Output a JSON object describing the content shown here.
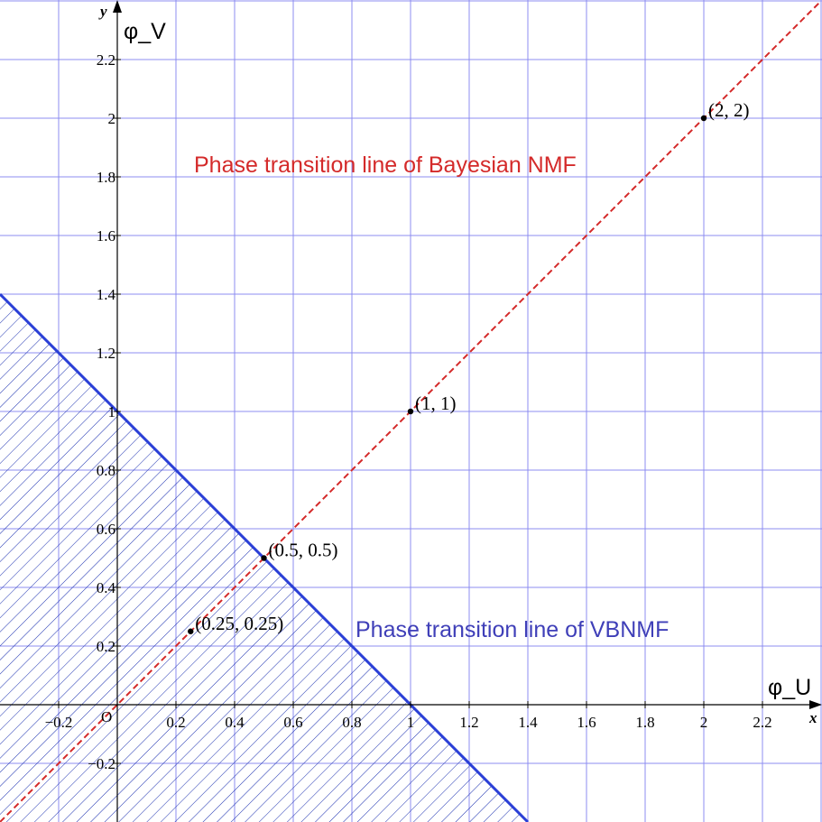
{
  "chart_data": {
    "type": "line",
    "x_axis": {
      "var_label": "x",
      "label": "φ_U",
      "range": [
        -0.4,
        2.4
      ],
      "ticks": [
        {
          "value": -0.2,
          "label": "−0.2"
        },
        {
          "value": 0.2,
          "label": "0.2"
        },
        {
          "value": 0.4,
          "label": "0.4"
        },
        {
          "value": 0.6,
          "label": "0.6"
        },
        {
          "value": 0.8,
          "label": "0.8"
        },
        {
          "value": 1.0,
          "label": "1"
        },
        {
          "value": 1.2,
          "label": "1.2"
        },
        {
          "value": 1.4,
          "label": "1.4"
        },
        {
          "value": 1.6,
          "label": "1.6"
        },
        {
          "value": 1.8,
          "label": "1.8"
        },
        {
          "value": 2.0,
          "label": "2"
        },
        {
          "value": 2.2,
          "label": "2.2"
        }
      ]
    },
    "y_axis": {
      "var_label": "y",
      "label": "φ_V",
      "range": [
        -0.4,
        2.4
      ],
      "ticks": [
        {
          "value": -0.2,
          "label": "−0.2"
        },
        {
          "value": 0.2,
          "label": "0.2"
        },
        {
          "value": 0.4,
          "label": "0.4"
        },
        {
          "value": 0.6,
          "label": "0.6"
        },
        {
          "value": 0.8,
          "label": "0.8"
        },
        {
          "value": 1.0,
          "label": "1"
        },
        {
          "value": 1.2,
          "label": "1.2"
        },
        {
          "value": 1.4,
          "label": "1.4"
        },
        {
          "value": 1.6,
          "label": "1.6"
        },
        {
          "value": 1.8,
          "label": "1.8"
        },
        {
          "value": 2.0,
          "label": "2"
        },
        {
          "value": 2.2,
          "label": "2.2"
        }
      ]
    },
    "origin_label": "O",
    "grid": true,
    "grid_step": 0.2,
    "series": [
      {
        "id": "vbnmf",
        "style": "solid",
        "color": "#2a3fd6",
        "x": [
          -0.4,
          1.4
        ],
        "y": [
          1.4,
          -0.4
        ],
        "hatched_below": true
      },
      {
        "id": "bayes",
        "style": "dashed",
        "color": "#d42a2a",
        "x": [
          -0.4,
          2.4
        ],
        "y": [
          -0.4,
          2.4
        ]
      }
    ],
    "points": [
      {
        "x": 0.25,
        "y": 0.25,
        "label": "(0.25, 0.25)"
      },
      {
        "x": 0.5,
        "y": 0.5,
        "label": "(0.5, 0.5)"
      },
      {
        "x": 1.0,
        "y": 1.0,
        "label": "(1, 1)"
      },
      {
        "x": 2.0,
        "y": 2.0,
        "label": "(2, 2)"
      }
    ],
    "annotations": [
      {
        "id": "bayes",
        "text": "Phase transition line of Bayesian NMF",
        "color": "#d42a2a"
      },
      {
        "id": "vbnmf",
        "text": "Phase transition line of VBNMF",
        "color": "#3f3fb8"
      }
    ],
    "colors": {
      "grid": "#8c8cf0",
      "hatch": "#1a2fb0",
      "axis": "#000000"
    }
  }
}
